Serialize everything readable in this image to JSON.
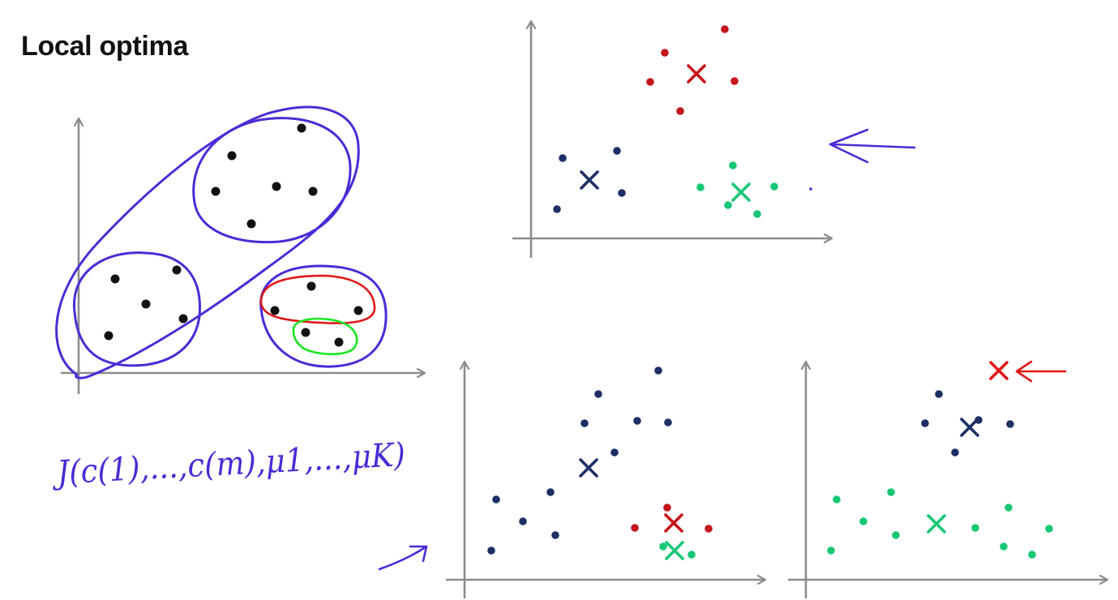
{
  "slide": {
    "title": "Local optima"
  },
  "colors": {
    "axis": "#8c8c8c",
    "ink": "#4b2bd6",
    "point": "#111111",
    "red": "#e01818",
    "dark_red": "#c4151b",
    "navy": "#1e2f66",
    "green": "#18c774",
    "bright_green": "#19e61e"
  },
  "handwriting": {
    "cost_function": "J(c(1),...,c(m),μ1,...,μK)"
  },
  "panels": [
    {
      "name": "original-data",
      "marks": "black points circled by hand into clusters"
    },
    {
      "name": "good-clustering",
      "marks": "three clusters red navy green with centroids"
    },
    {
      "name": "bad-clustering-left",
      "marks": "navy and red green centroids"
    },
    {
      "name": "bad-clustering-right",
      "marks": "navy green red centroids"
    }
  ],
  "icons": [
    "left-arrow-icon",
    "red-left-arrow-icon",
    "up-right-arrow-icon"
  ]
}
